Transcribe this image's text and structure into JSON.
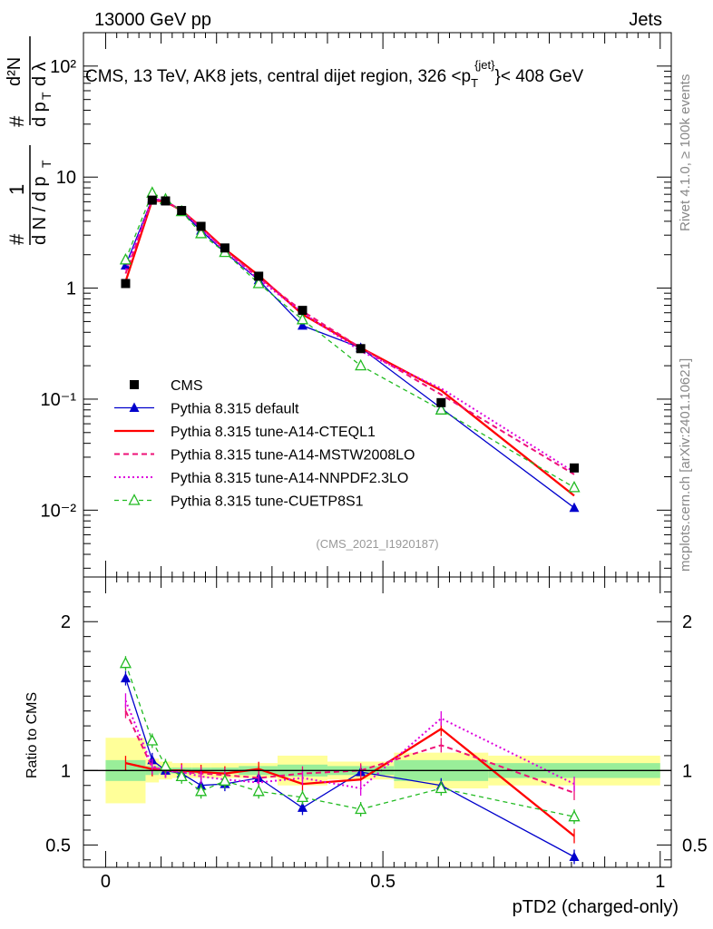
{
  "header": {
    "energy": "13000 GeV pp",
    "category": "Jets",
    "title_left": "CMS, 13 TeV, AK8 jets, central dijet region, 326 <p",
    "title_sub": "T",
    "title_sup": "{jet}",
    "title_right": "}< 408 GeV"
  },
  "side": {
    "rivet": "Rivet 4.1.0, ≥ 100k events",
    "source": "mcplots.cern.ch [arXiv:2401.10621]"
  },
  "watermark": "(CMS_2021_I1920187)",
  "ylabel_main": "1/N dN/dpT dλ  ( # · d²N / dpT dλ )",
  "colors": {
    "cms": "#000000",
    "default": "#0000cc",
    "cteql1": "#ff0000",
    "mstw": "#ee1177",
    "nnpdf": "#dd00dd",
    "cuetp": "#22bb22",
    "band_inner": "#99ee99",
    "band_outer": "#ffff99"
  },
  "chart_data": [
    {
      "type": "line",
      "title": "CMS, 13 TeV, AK8 jets, central dijet region, 326 < p_T^{jet} < 408 GeV",
      "xlabel": "pTD2 (charged-only)",
      "ylabel": "1/N dN/dp_T dλ",
      "yscale": "log",
      "xlim": [
        -0.04,
        1.02
      ],
      "ylim": [
        0.0025,
        200
      ],
      "y_ticks": [
        "10⁻²",
        "10⁻¹",
        "1",
        "10",
        "10²"
      ],
      "x": [
        0.036,
        0.084,
        0.108,
        0.137,
        0.172,
        0.215,
        0.276,
        0.355,
        0.46,
        0.605,
        0.845
      ],
      "series": [
        {
          "name": "CMS",
          "marker": "square",
          "values": [
            1.1,
            6.2,
            6.1,
            5.0,
            3.6,
            2.3,
            1.28,
            0.63,
            0.285,
            0.093,
            0.024
          ]
        },
        {
          "name": "Pythia 8.315 default",
          "marker": "triangle",
          "values": [
            1.6,
            6.4,
            6.1,
            4.9,
            3.3,
            2.1,
            1.18,
            0.46,
            0.29,
            0.083,
            0.0105
          ]
        },
        {
          "name": "Pythia 8.315 tune-A14-CTEQL1",
          "marker": "none",
          "style": "solid",
          "values": [
            1.15,
            6.2,
            6.0,
            5.0,
            3.55,
            2.25,
            1.3,
            0.58,
            0.29,
            0.12,
            0.0135
          ]
        },
        {
          "name": "Pythia 8.315 tune-A14-MSTW2008LO",
          "marker": "none",
          "style": "dashed",
          "values": [
            1.35,
            6.3,
            6.1,
            5.0,
            3.5,
            2.2,
            1.25,
            0.62,
            0.29,
            0.11,
            0.021
          ]
        },
        {
          "name": "Pythia 8.315 tune-A14-NNPDF2.3LO",
          "marker": "none",
          "style": "dotted",
          "values": [
            1.45,
            6.4,
            6.1,
            5.0,
            3.45,
            2.15,
            1.2,
            0.6,
            0.27,
            0.125,
            0.022
          ]
        },
        {
          "name": "Pythia 8.315 tune-CUETP8S1",
          "marker": "open-triangle",
          "style": "dashed",
          "values": [
            1.8,
            7.2,
            6.3,
            4.9,
            3.1,
            2.1,
            1.1,
            0.52,
            0.2,
            0.08,
            0.016
          ]
        }
      ]
    },
    {
      "type": "line",
      "title": "",
      "xlabel": "pTD2 (charged-only)",
      "ylabel": "Ratio to CMS",
      "xlim": [
        -0.04,
        1.02
      ],
      "ylim": [
        0.35,
        2.3
      ],
      "y_ticks": [
        "0.5",
        "1",
        "2"
      ],
      "x_ticks": [
        "0",
        "0.5",
        "1"
      ],
      "x": [
        0.036,
        0.084,
        0.108,
        0.137,
        0.172,
        0.215,
        0.276,
        0.355,
        0.46,
        0.605,
        0.845
      ],
      "series": [
        {
          "name": "Pythia 8.315 default",
          "values": [
            1.62,
            1.07,
            1.0,
            0.98,
            0.9,
            0.91,
            0.95,
            0.75,
            0.99,
            0.9,
            0.42
          ]
        },
        {
          "name": "Pythia 8.315 tune-A14-CTEQL1",
          "values": [
            1.05,
            1.01,
            1.0,
            1.0,
            0.99,
            0.98,
            1.01,
            0.91,
            0.94,
            1.28,
            0.56
          ]
        },
        {
          "name": "Pythia 8.315 tune-A14-MSTW2008LO",
          "values": [
            1.4,
            1.02,
            1.0,
            0.99,
            0.98,
            0.97,
            0.95,
            0.98,
            1.0,
            1.17,
            0.85
          ]
        },
        {
          "name": "Pythia 8.315 tune-A14-NNPDF2.3LO",
          "values": [
            1.47,
            1.03,
            1.0,
            0.99,
            0.96,
            0.94,
            0.92,
            0.95,
            0.88,
            1.35,
            0.91
          ]
        },
        {
          "name": "Pythia 8.315 tune-CUETP8S1",
          "values": [
            1.72,
            1.2,
            1.03,
            0.96,
            0.86,
            0.93,
            0.86,
            0.82,
            0.74,
            0.88,
            0.69
          ]
        }
      ]
    }
  ]
}
